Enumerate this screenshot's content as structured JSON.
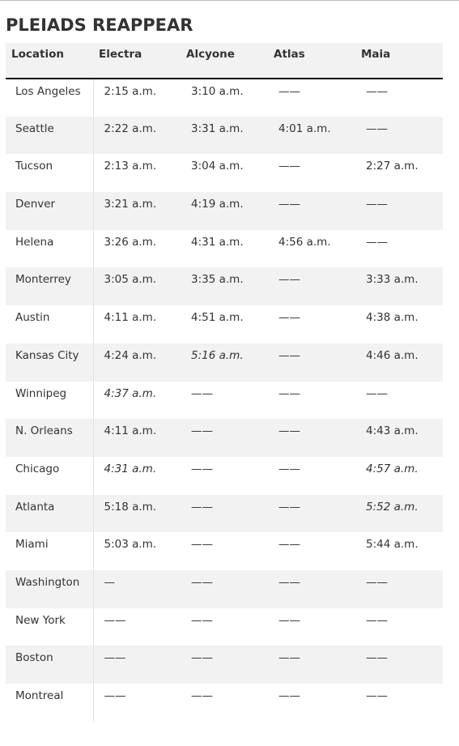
{
  "header": {
    "title": "PLEIADS REAPPEAR"
  },
  "table": {
    "columns": [
      "Location",
      "Electra",
      "Alcyone",
      "Atlas",
      "Maia"
    ],
    "rows": [
      [
        "Los Angeles",
        "2:15 a.m.",
        "3:10 a.m.",
        "——",
        "——"
      ],
      [
        "Seattle",
        "2:22 a.m.",
        "3:31 a.m.",
        "4:01 a.m.",
        "——"
      ],
      [
        "Tucson",
        "2:13 a.m.",
        "3:04 a.m.",
        "——",
        "2:27 a.m."
      ],
      [
        "Denver",
        "3:21 a.m.",
        "4:19 a.m.",
        "——",
        "——"
      ],
      [
        "Helena",
        "3:26 a.m.",
        "4:31 a.m.",
        "4:56 a.m.",
        "——"
      ],
      [
        "Monterrey",
        "3:05 a.m.",
        "3:35 a.m.",
        "——",
        "3:33 a.m."
      ],
      [
        "Austin",
        "4:11 a.m.",
        "4:51 a.m.",
        "——",
        "4:38 a.m."
      ],
      [
        "Kansas City",
        "4:24 a.m.",
        "5:16 a.m.",
        "——",
        "4:46 a.m."
      ],
      [
        "Winnipeg",
        "4:37 a.m.",
        "——",
        "——",
        "——"
      ],
      [
        "N. Orleans",
        "4:11 a.m.",
        "——",
        "——",
        "4:43 a.m."
      ],
      [
        "Chicago",
        "4:31 a.m.",
        "——",
        "——",
        "4:57 a.m."
      ],
      [
        "Atlanta",
        "5:18 a.m.",
        "——",
        "——",
        "5:52 a.m."
      ],
      [
        "Miami",
        "5:03 a.m.",
        "——",
        "——",
        "5:44 a.m."
      ],
      [
        "Washington",
        "—",
        "——",
        "——",
        "——"
      ],
      [
        "New York",
        "——",
        "——",
        "——",
        "——"
      ],
      [
        "Boston",
        "——",
        "——",
        "——",
        "——"
      ],
      [
        "Montreal",
        "——",
        "——",
        "——",
        "——"
      ]
    ],
    "italic_cells": [
      [
        7,
        2
      ],
      [
        8,
        1
      ],
      [
        10,
        1
      ],
      [
        10,
        4
      ],
      [
        11,
        4
      ]
    ]
  }
}
